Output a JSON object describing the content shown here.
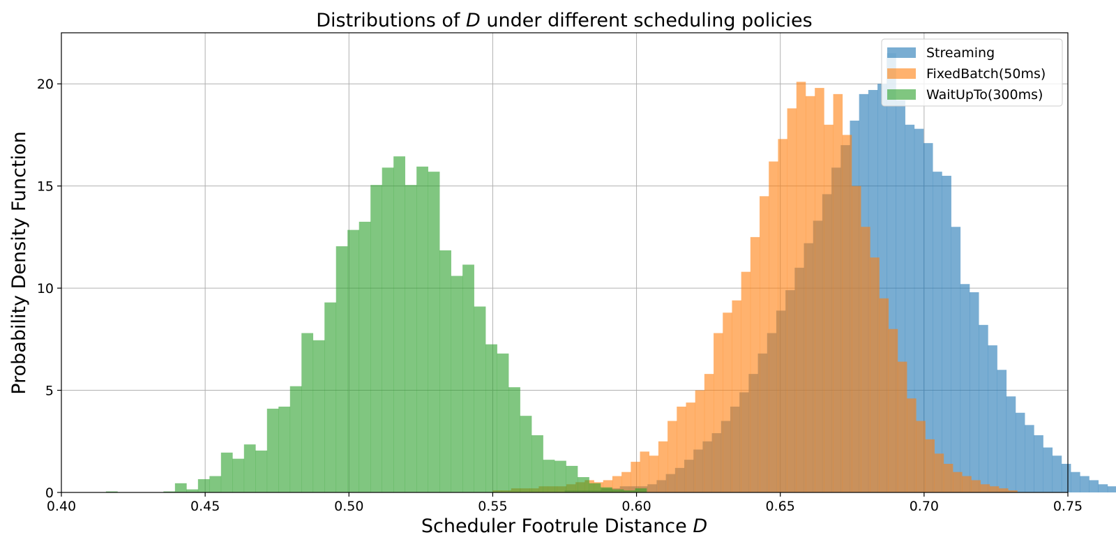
{
  "chart_data": {
    "type": "histogram",
    "title_prefix": "Distributions of ",
    "title_var": "D",
    "title_suffix": " under different scheduling policies",
    "xlabel_prefix": "Scheduler Footrule Distance ",
    "xlabel_var": "D",
    "ylabel": "Probability Density Function",
    "xlim": [
      0.4,
      0.75
    ],
    "ylim": [
      0,
      22.5
    ],
    "xticks": [
      0.4,
      0.45,
      0.5,
      0.55,
      0.6,
      0.65,
      0.7,
      0.75
    ],
    "xtick_labels": [
      "0.40",
      "0.45",
      "0.50",
      "0.55",
      "0.60",
      "0.65",
      "0.70",
      "0.75"
    ],
    "yticks": [
      0,
      5,
      10,
      15,
      20
    ],
    "ytick_labels": [
      "0",
      "5",
      "10",
      "15",
      "20"
    ],
    "grid": true,
    "legend_position": "top-right",
    "opacity": 0.6,
    "series": [
      {
        "name": "Streaming",
        "color": "#1f77b4",
        "x_start": 0.575,
        "bin_width": 0.0032,
        "densities": [
          0.1,
          0.1,
          0.1,
          0.1,
          0.2,
          0.2,
          0.3,
          0.3,
          0.3,
          0.4,
          0.6,
          0.9,
          1.2,
          1.6,
          2.1,
          2.5,
          2.9,
          3.5,
          4.2,
          4.9,
          5.8,
          6.8,
          7.8,
          8.9,
          9.9,
          11.0,
          12.2,
          13.3,
          14.6,
          15.9,
          17.0,
          18.2,
          19.5,
          19.7,
          20.0,
          21.5,
          19.2,
          18.0,
          17.8,
          17.1,
          15.7,
          15.5,
          13.0,
          10.2,
          9.8,
          8.2,
          7.2,
          6.0,
          4.7,
          3.9,
          3.3,
          2.8,
          2.2,
          1.8,
          1.4,
          1.0,
          0.8,
          0.6,
          0.4,
          0.3,
          0.2,
          0.1
        ]
      },
      {
        "name": "FixedBatch(50ms)",
        "color": "#ff7f0e",
        "x_start": 0.55,
        "bin_width": 0.0032,
        "densities": [
          0.1,
          0.1,
          0.2,
          0.2,
          0.2,
          0.3,
          0.3,
          0.3,
          0.4,
          0.5,
          0.6,
          0.5,
          0.6,
          0.8,
          1.0,
          1.5,
          2.0,
          1.8,
          2.5,
          3.5,
          4.2,
          4.4,
          5.0,
          5.8,
          7.8,
          8.8,
          9.4,
          10.8,
          12.5,
          14.5,
          16.2,
          17.3,
          18.8,
          20.1,
          19.4,
          19.8,
          18.0,
          19.5,
          17.5,
          15.0,
          13.0,
          11.5,
          9.5,
          8.0,
          6.4,
          4.6,
          3.5,
          2.6,
          1.9,
          1.4,
          1.0,
          0.8,
          0.6,
          0.4,
          0.3,
          0.2,
          0.1
        ]
      },
      {
        "name": "WaitUpTo(300ms)",
        "color": "#2ca02c",
        "x_start": 0.4155,
        "bin_width": 0.004,
        "densities": [
          0.05,
          0.0,
          0.0,
          0.0,
          0.0,
          0.05,
          0.45,
          0.15,
          0.65,
          0.8,
          1.95,
          1.65,
          2.35,
          2.05,
          4.1,
          4.2,
          5.2,
          7.8,
          7.45,
          9.3,
          12.05,
          12.85,
          13.25,
          15.05,
          15.9,
          16.45,
          15.05,
          15.95,
          15.7,
          11.85,
          10.6,
          11.15,
          9.1,
          7.25,
          6.8,
          5.15,
          3.75,
          2.8,
          1.6,
          1.55,
          1.3,
          0.75,
          0.45,
          0.25,
          0.15,
          0.1,
          0.2
        ]
      }
    ]
  }
}
